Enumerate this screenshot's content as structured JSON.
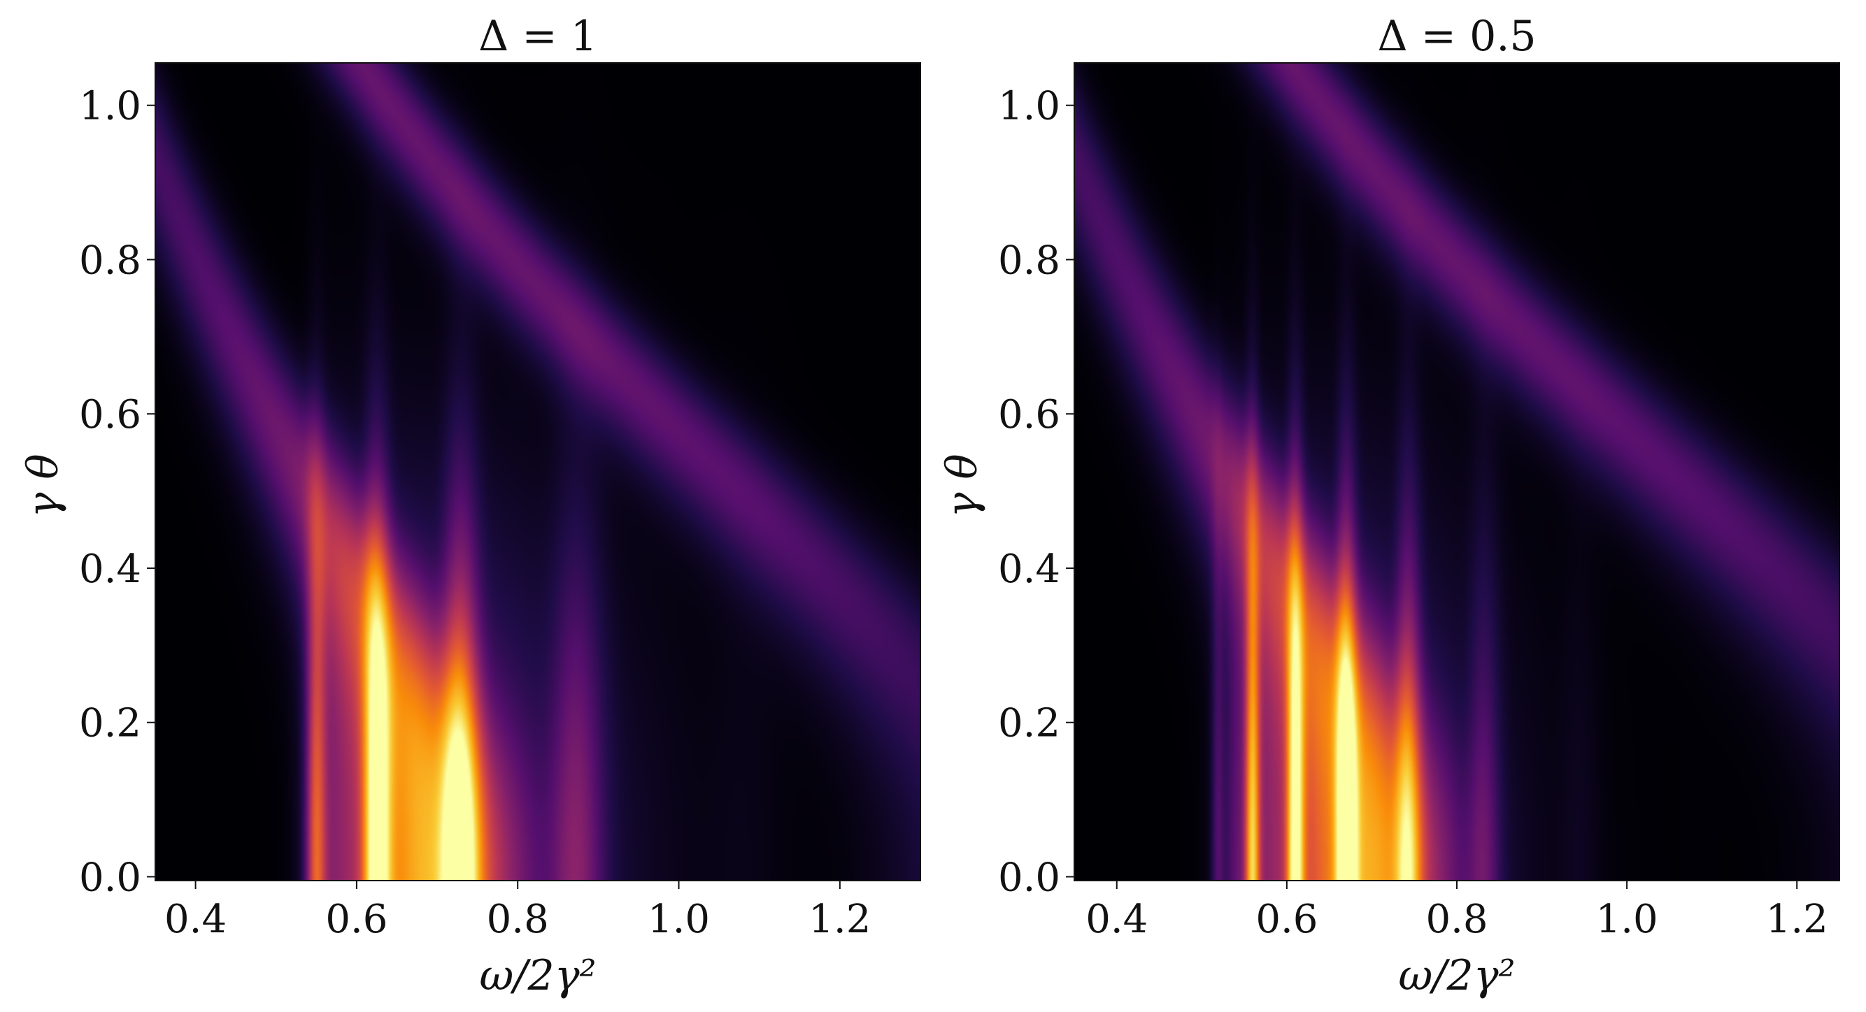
{
  "chart_data": [
    {
      "type": "heatmap",
      "title": "Δ = 1",
      "xlabel": "ω/2γ²",
      "ylabel": "γ θ",
      "xlim": [
        0.35,
        1.3
      ],
      "ylim": [
        -0.005,
        1.055
      ],
      "xticks": [
        0.4,
        0.6,
        0.8,
        1.0,
        1.2
      ],
      "xtick_labels": [
        "0.4",
        "0.6",
        "0.8",
        "1.0",
        "1.2"
      ],
      "yticks": [
        0.0,
        0.2,
        0.4,
        0.6,
        0.8,
        1.0
      ],
      "ytick_labels": [
        "0.0",
        "0.2",
        "0.4",
        "0.6",
        "0.8",
        "1.0"
      ],
      "colormap": "inferno",
      "grid": false,
      "delta": 1.0,
      "peaks_at_zero_angle": [
        0.625,
        0.71,
        0.765,
        0.81,
        0.845,
        0.875,
        0.9,
        0.93,
        0.95
      ]
    },
    {
      "type": "heatmap",
      "title": "Δ = 0.5",
      "xlabel": "ω/2γ²",
      "ylabel": "γ θ",
      "xlim": [
        0.35,
        1.25
      ],
      "ylim": [
        -0.005,
        1.055
      ],
      "xticks": [
        0.4,
        0.6,
        0.8,
        1.0,
        1.2
      ],
      "xtick_labels": [
        "0.4",
        "0.6",
        "0.8",
        "1.0",
        "1.2"
      ],
      "yticks": [
        0.0,
        0.2,
        0.4,
        0.6,
        0.8,
        1.0
      ],
      "ytick_labels": [
        "0.0",
        "0.2",
        "0.4",
        "0.6",
        "0.8",
        "1.0"
      ],
      "colormap": "inferno",
      "grid": false,
      "delta": 0.5,
      "peaks_at_zero_angle": [
        0.61,
        0.67,
        0.71,
        0.74,
        0.765,
        0.785,
        0.805,
        0.82,
        0.835
      ]
    }
  ]
}
